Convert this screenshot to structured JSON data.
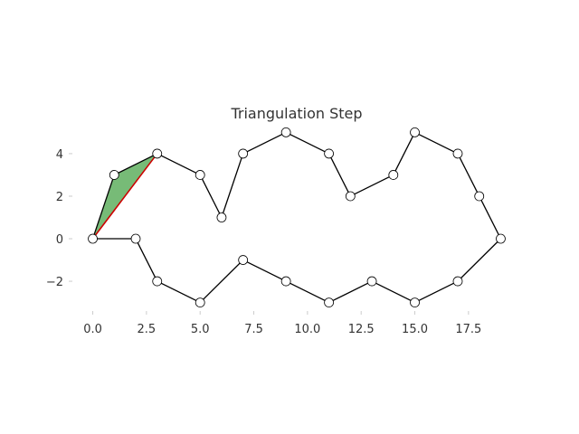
{
  "chart_data": {
    "type": "line",
    "title": "Triangulation Step",
    "xlabel": "",
    "ylabel": "",
    "xlim": [
      -0.95,
      19.95
    ],
    "ylim": [
      -3.4,
      5.4
    ],
    "grid": false,
    "x_ticks": [
      0.0,
      2.5,
      5.0,
      7.5,
      10.0,
      12.5,
      15.0,
      17.5
    ],
    "x_tick_labels": [
      "0.0",
      "2.5",
      "5.0",
      "7.5",
      "10.0",
      "12.5",
      "15.0",
      "17.5"
    ],
    "y_ticks": [
      -2,
      0,
      2,
      4
    ],
    "y_tick_labels": [
      "−2",
      "0",
      "2",
      "4"
    ],
    "polygon": {
      "closed": true,
      "x": [
        0,
        1,
        3,
        5,
        6,
        7,
        9,
        11,
        12,
        14,
        15,
        17,
        18,
        19,
        17,
        15,
        13,
        11,
        9,
        7,
        5,
        3,
        2
      ],
      "y": [
        0,
        3,
        4,
        3,
        1,
        4,
        5,
        4,
        2,
        3,
        5,
        4,
        2,
        0,
        -2,
        -3,
        -2,
        -3,
        -2,
        -1,
        -3,
        -2,
        0
      ],
      "line_color": "#000000",
      "marker_face": "#ffffff",
      "marker_edge": "#000000"
    },
    "highlight_triangle": {
      "x": [
        0,
        1,
        3
      ],
      "y": [
        0,
        3,
        4
      ],
      "fill_color": "#77bb77"
    },
    "diagonal": {
      "x": [
        0,
        3
      ],
      "y": [
        0,
        4
      ],
      "color": "#cc0000"
    }
  }
}
